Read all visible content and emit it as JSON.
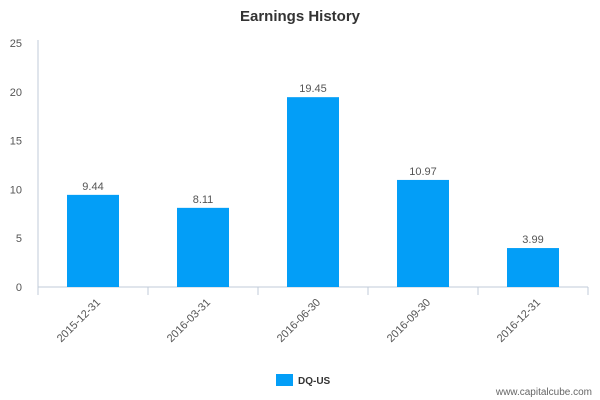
{
  "chart_data": {
    "type": "bar",
    "title": "Earnings History",
    "categories": [
      "2015-12-31",
      "2016-03-31",
      "2016-06-30",
      "2016-09-30",
      "2016-12-31"
    ],
    "series": [
      {
        "name": "DQ-US",
        "values": [
          9.44,
          8.11,
          19.45,
          10.97,
          3.99
        ],
        "color": "#039ef7"
      }
    ],
    "data_labels": [
      "9.44",
      "8.11",
      "19.45",
      "10.97",
      "3.99"
    ],
    "y_ticks": [
      "0",
      "5",
      "10",
      "15",
      "20",
      "25"
    ],
    "ylim": [
      0,
      25
    ],
    "grid": false,
    "legend_position": "bottom"
  },
  "credit": "www.capitalcube.com"
}
